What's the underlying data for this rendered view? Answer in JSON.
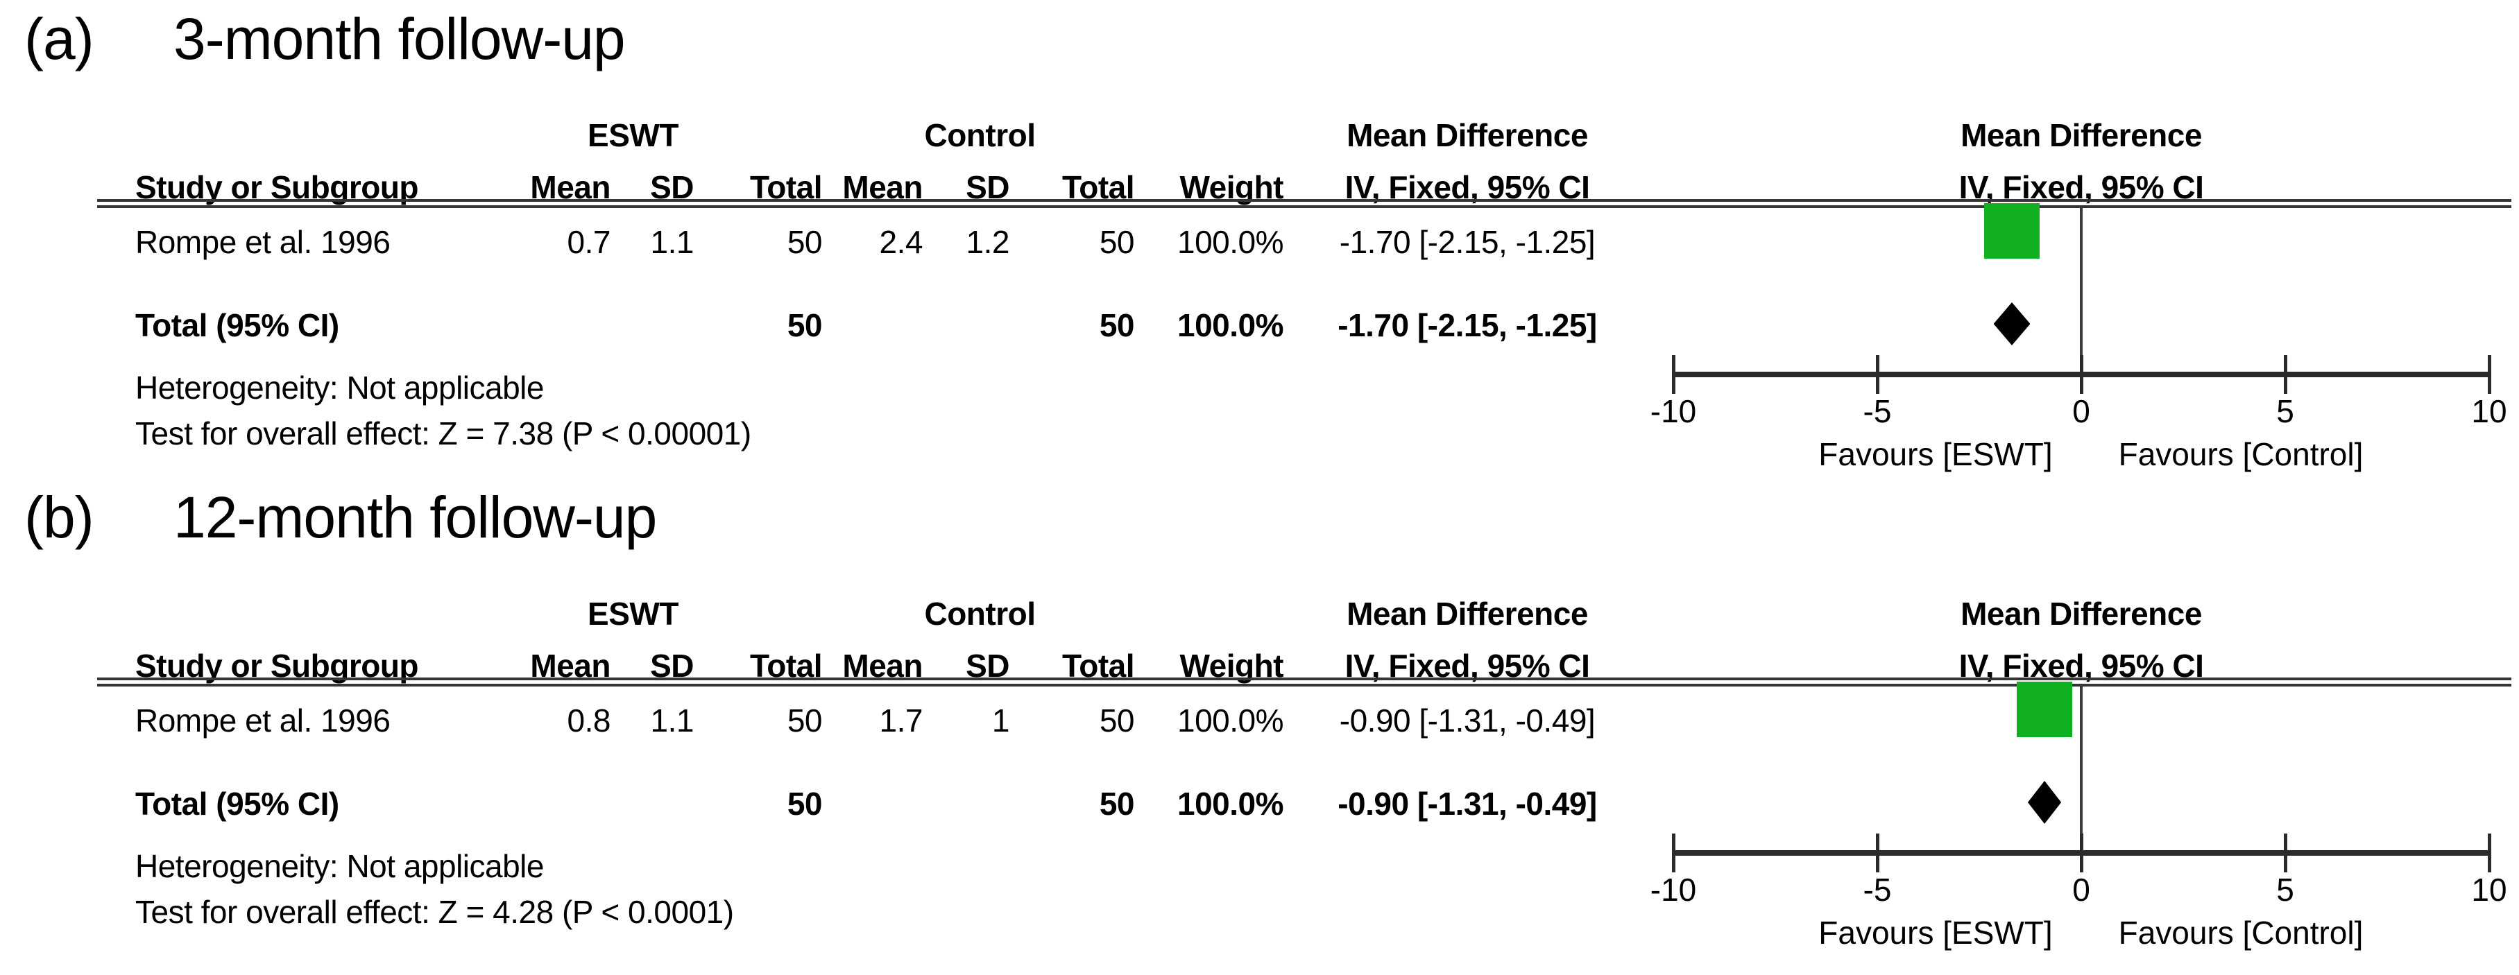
{
  "figure": {
    "panels": [
      {
        "label": "(a)",
        "title": "3-month follow-up",
        "table": {
          "group1_header": "ESWT",
          "group2_header": "Control",
          "md_header_line1": "Mean Difference",
          "md_header_line2": "IV, Fixed, 95% CI",
          "plot_header_line1": "Mean Difference",
          "plot_header_line2": "IV, Fixed, 95% CI",
          "col_headers": {
            "study": "Study or Subgroup",
            "mean": "Mean",
            "sd": "SD",
            "total": "Total",
            "weight": "Weight"
          },
          "study_row": {
            "study": "Rompe et al. 1996",
            "mean1": "0.7",
            "sd1": "1.1",
            "total1": "50",
            "mean2": "2.4",
            "sd2": "1.2",
            "total2": "50",
            "weight": "100.0%",
            "md_ci": "-1.70 [-2.15, -1.25]"
          },
          "total_row": {
            "label": "Total (95% CI)",
            "total1": "50",
            "total2": "50",
            "weight": "100.0%",
            "md_ci": "-1.70 [-2.15, -1.25]"
          },
          "heterogeneity": "Heterogeneity: Not applicable",
          "overall_effect": "Test for overall effect: Z = 7.38 (P < 0.00001)"
        },
        "plot": {
          "ticks": [
            "-10",
            "-5",
            "0",
            "5",
            "10"
          ],
          "favours_left": "Favours [ESWT]",
          "favours_right": "Favours [Control]"
        }
      },
      {
        "label": "(b)",
        "title": "12-month follow-up",
        "table": {
          "group1_header": "ESWT",
          "group2_header": "Control",
          "md_header_line1": "Mean Difference",
          "md_header_line2": "IV, Fixed, 95% CI",
          "plot_header_line1": "Mean Difference",
          "plot_header_line2": "IV, Fixed, 95% CI",
          "col_headers": {
            "study": "Study or Subgroup",
            "mean": "Mean",
            "sd": "SD",
            "total": "Total",
            "weight": "Weight"
          },
          "study_row": {
            "study": "Rompe et al. 1996",
            "mean1": "0.8",
            "sd1": "1.1",
            "total1": "50",
            "mean2": "1.7",
            "sd2": "1",
            "total2": "50",
            "weight": "100.0%",
            "md_ci": "-0.90 [-1.31, -0.49]"
          },
          "total_row": {
            "label": "Total (95% CI)",
            "total1": "50",
            "total2": "50",
            "weight": "100.0%",
            "md_ci": "-0.90 [-1.31, -0.49]"
          },
          "heterogeneity": "Heterogeneity: Not applicable",
          "overall_effect": "Test for overall effect: Z = 4.28 (P < 0.0001)"
        },
        "plot": {
          "ticks": [
            "-10",
            "-5",
            "0",
            "5",
            "10"
          ],
          "favours_left": "Favours [ESWT]",
          "favours_right": "Favours [Control]"
        }
      }
    ]
  },
  "colors": {
    "study_marker_green": "#11b021",
    "summary_diamond_black": "#000000",
    "line_dark": "#2b2b2b"
  },
  "chart_data": [
    {
      "type": "scatter",
      "subtype": "forest-plot",
      "title": "(a) 3-month follow-up",
      "xlabel": "Mean Difference IV, Fixed, 95% CI",
      "xlim": [
        -10,
        10
      ],
      "xticks": [
        -10,
        -5,
        0,
        5,
        10
      ],
      "direction_labels": {
        "left": "Favours [ESWT]",
        "right": "Favours [Control]"
      },
      "points": [
        {
          "label": "Rompe et al. 1996",
          "eswt_mean": 0.7,
          "eswt_sd": 1.1,
          "eswt_total": 50,
          "control_mean": 2.4,
          "control_sd": 1.2,
          "control_total": 50,
          "weight_pct": 100.0,
          "md": -1.7,
          "ci": [
            -2.15,
            -1.25
          ],
          "marker": "square",
          "color": "#11b021"
        }
      ],
      "summary": {
        "label": "Total (95% CI)",
        "total_eswt": 50,
        "total_control": 50,
        "weight_pct": 100.0,
        "md": -1.7,
        "ci": [
          -2.15,
          -1.25
        ],
        "marker": "diamond",
        "color": "#000000"
      },
      "annotations": [
        "Heterogeneity: Not applicable",
        "Test for overall effect: Z = 7.38 (P < 0.00001)"
      ]
    },
    {
      "type": "scatter",
      "subtype": "forest-plot",
      "title": "(b) 12-month follow-up",
      "xlabel": "Mean Difference IV, Fixed, 95% CI",
      "xlim": [
        -10,
        10
      ],
      "xticks": [
        -10,
        -5,
        0,
        5,
        10
      ],
      "direction_labels": {
        "left": "Favours [ESWT]",
        "right": "Favours [Control]"
      },
      "points": [
        {
          "label": "Rompe et al. 1996",
          "eswt_mean": 0.8,
          "eswt_sd": 1.1,
          "eswt_total": 50,
          "control_mean": 1.7,
          "control_sd": 1,
          "control_total": 50,
          "weight_pct": 100.0,
          "md": -0.9,
          "ci": [
            -1.31,
            -0.49
          ],
          "marker": "square",
          "color": "#11b021"
        }
      ],
      "summary": {
        "label": "Total (95% CI)",
        "total_eswt": 50,
        "total_control": 50,
        "weight_pct": 100.0,
        "md": -0.9,
        "ci": [
          -1.31,
          -0.49
        ],
        "marker": "diamond",
        "color": "#000000"
      },
      "annotations": [
        "Heterogeneity: Not applicable",
        "Test for overall effect: Z = 4.28 (P < 0.0001)"
      ]
    }
  ]
}
